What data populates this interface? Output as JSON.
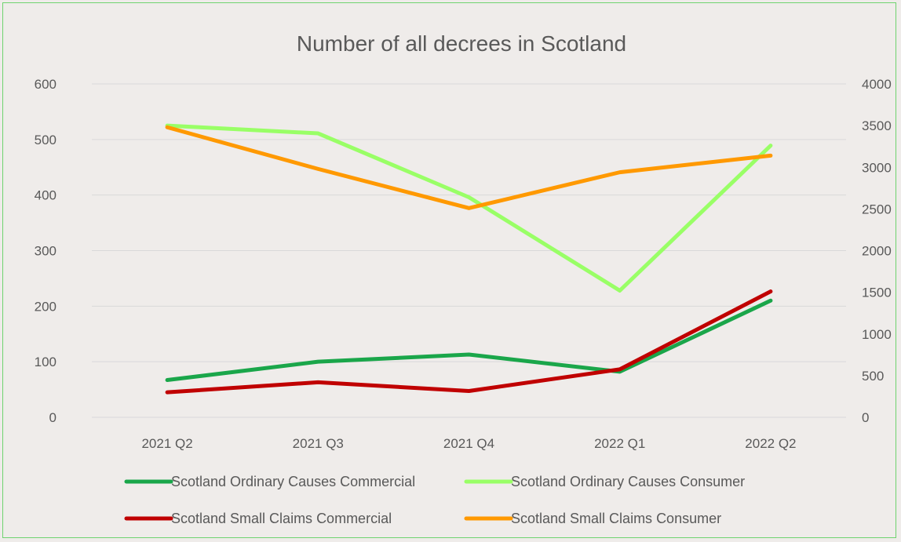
{
  "chart_data": {
    "type": "line",
    "title": "Number of all decrees in Scotland",
    "categories": [
      "2021 Q2",
      "2021 Q3",
      "2021 Q4",
      "2022 Q1",
      "2022 Q2"
    ],
    "y_left": {
      "ticks": [
        "0",
        "100",
        "200",
        "300",
        "400",
        "500",
        "600"
      ],
      "range": [
        0,
        600
      ]
    },
    "y_right": {
      "ticks": [
        "0",
        "500",
        "1000",
        "1500",
        "2000",
        "2500",
        "3000",
        "3500",
        "4000"
      ],
      "range": [
        0,
        4000
      ]
    },
    "grid": true,
    "legend_position": "bottom",
    "series": [
      {
        "name": "Scotland Ordinary Causes Commercial",
        "axis": "left",
        "color": "#1aa64a",
        "values": [
          67,
          100,
          113,
          82,
          210
        ]
      },
      {
        "name": "Scotland Ordinary Causes Consumer",
        "axis": "left",
        "color": "#99ff66",
        "values": [
          525,
          511,
          396,
          228,
          489
        ]
      },
      {
        "name": "Scotland Small Claims Commercial",
        "axis": "right",
        "color": "#c00000",
        "values": [
          300,
          420,
          315,
          575,
          1510
        ]
      },
      {
        "name": "Scotland Small Claims Consumer",
        "axis": "right",
        "color": "#ff9900",
        "values": [
          3480,
          2980,
          2510,
          2940,
          3140
        ]
      }
    ]
  }
}
